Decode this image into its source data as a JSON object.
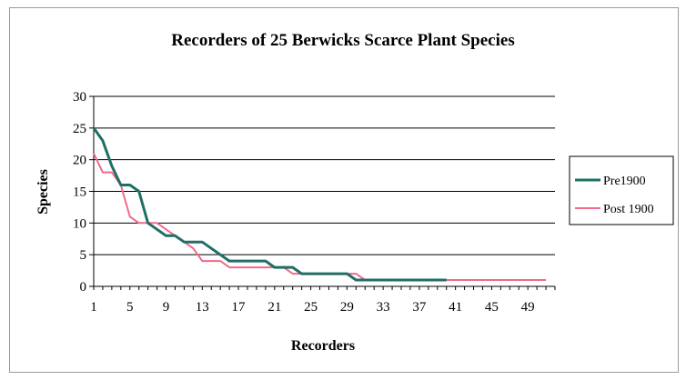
{
  "chart_data": {
    "type": "line",
    "title": "Recorders of 25 Berwicks Scarce Plant Species",
    "xlabel": "Recorders",
    "ylabel": "Species",
    "xlim": [
      1,
      52
    ],
    "ylim": [
      0,
      30
    ],
    "y_ticks": [
      0,
      5,
      10,
      15,
      20,
      25,
      30
    ],
    "x_ticks": [
      1,
      5,
      9,
      13,
      17,
      21,
      25,
      29,
      33,
      37,
      41,
      45,
      49
    ],
    "grid": "horizontal",
    "legend_position": "right",
    "series": [
      {
        "name": "Pre1900",
        "color": "#1f6f66",
        "x": [
          1,
          2,
          3,
          4,
          5,
          6,
          7,
          8,
          9,
          10,
          11,
          12,
          13,
          14,
          15,
          16,
          17,
          18,
          19,
          20,
          21,
          22,
          23,
          24,
          25,
          26,
          27,
          28,
          29,
          30,
          31,
          32,
          33,
          34,
          35,
          36,
          37,
          38,
          39,
          40
        ],
        "values": [
          25,
          23,
          19,
          16,
          16,
          15,
          10,
          9,
          8,
          8,
          7,
          7,
          7,
          6,
          5,
          4,
          4,
          4,
          4,
          4,
          3,
          3,
          3,
          2,
          2,
          2,
          2,
          2,
          2,
          1,
          1,
          1,
          1,
          1,
          1,
          1,
          1,
          1,
          1,
          1
        ]
      },
      {
        "name": "Post 1900",
        "color": "#f06a8a",
        "x": [
          1,
          2,
          3,
          4,
          5,
          6,
          7,
          8,
          9,
          10,
          11,
          12,
          13,
          14,
          15,
          16,
          17,
          18,
          19,
          20,
          21,
          22,
          23,
          24,
          25,
          26,
          27,
          28,
          29,
          30,
          31,
          32,
          33,
          34,
          35,
          36,
          37,
          38,
          39,
          40,
          41,
          42,
          43,
          44,
          45,
          46,
          47,
          48,
          49,
          50,
          51
        ],
        "values": [
          21,
          18,
          18,
          16,
          11,
          10,
          10,
          10,
          9,
          8,
          7,
          6,
          4,
          4,
          4,
          3,
          3,
          3,
          3,
          3,
          3,
          3,
          2,
          2,
          2,
          2,
          2,
          2,
          2,
          2,
          1,
          1,
          1,
          1,
          1,
          1,
          1,
          1,
          1,
          1,
          1,
          1,
          1,
          1,
          1,
          1,
          1,
          1,
          1,
          1,
          1
        ]
      }
    ]
  }
}
